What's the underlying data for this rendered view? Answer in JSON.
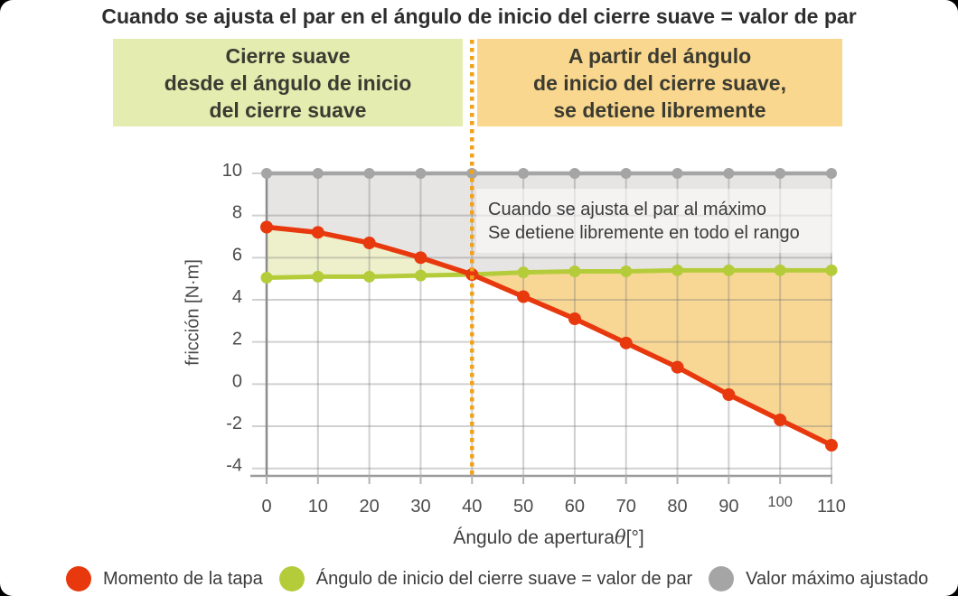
{
  "title": "Cuando se ajusta el par en el ángulo de inicio del cierre suave = valor de par",
  "banners": {
    "left": {
      "bg": "#e4ecb0",
      "line1": "Cierre suave",
      "line2": "desde el ángulo de inicio",
      "line3": "del cierre suave"
    },
    "right": {
      "bg": "#f9d78e",
      "line1": "A partir del ángulo",
      "line2": "de inicio del cierre suave,",
      "line3": "se detiene libremente"
    }
  },
  "annotation": {
    "line1": "Cuando se ajusta el par al máximo",
    "line2": "Se detiene libremente en todo el rango"
  },
  "axis": {
    "x_label_pre": "Ángulo de apertura",
    "x_label_theta": "θ",
    "x_label_post": "[°]",
    "y_label": "fricción [N·m]"
  },
  "legend": {
    "items": [
      {
        "label": "Momento de la tapa",
        "color": "#e8380d"
      },
      {
        "label": "Ángulo de inicio del cierre suave = valor de par",
        "color": "#b5cc3a"
      },
      {
        "label": "Valor máximo ajustado",
        "color": "#a5a5a5"
      }
    ]
  },
  "chart_data": {
    "type": "line",
    "title": "Cuando se ajusta el par en el ángulo de inicio del cierre suave = valor de par",
    "xlabel": "Ángulo de aperturaθ[°]",
    "ylabel": "fricción [N·m]",
    "grid": true,
    "x": [
      0,
      10,
      20,
      30,
      40,
      50,
      60,
      70,
      80,
      90,
      100,
      110
    ],
    "x_ticks": [
      0,
      10,
      20,
      30,
      40,
      50,
      60,
      70,
      80,
      90,
      100,
      110
    ],
    "y_ticks": [
      10,
      8,
      6,
      4,
      2,
      0,
      -2,
      -4
    ],
    "ylim": [
      -4.4,
      10
    ],
    "xlim": [
      0,
      110
    ],
    "vline": {
      "x": 40,
      "color": "#f0a21e",
      "style": "dotted"
    },
    "series": [
      {
        "name": "Momento de la tapa",
        "color": "#e8380d",
        "values": [
          7.45,
          7.2,
          6.7,
          6.0,
          5.2,
          4.15,
          3.1,
          1.95,
          0.8,
          -0.5,
          -1.7,
          -2.9
        ]
      },
      {
        "name": "Ángulo de inicio del cierre suave = valor de par",
        "color": "#b5cc3a",
        "values": [
          5.05,
          5.1,
          5.1,
          5.15,
          5.2,
          5.3,
          5.35,
          5.35,
          5.4,
          5.4,
          5.4,
          5.4
        ]
      },
      {
        "name": "Valor máximo ajustado",
        "color": "#a5a5a5",
        "values": [
          10,
          10,
          10,
          10,
          10,
          10,
          10,
          10,
          10,
          10,
          10,
          10
        ]
      }
    ],
    "fills": [
      {
        "name": "zona-hasta-valor-maximo",
        "color": "#e6e5e3",
        "between": [
          "Valor máximo ajustado",
          "envolvente superior"
        ],
        "x_range": [
          0,
          110
        ]
      },
      {
        "name": "zona-cierre-suave",
        "color": "#edf0ca",
        "between": [
          "Momento de la tapa",
          "Ángulo de inicio del cierre suave = valor de par"
        ],
        "x_range": [
          0,
          40
        ]
      },
      {
        "name": "zona-detencion-libre",
        "color": "#f8d795",
        "between": [
          "Ángulo de inicio del cierre suave = valor de par",
          "Momento de la tapa"
        ],
        "x_range": [
          40,
          110
        ]
      }
    ]
  }
}
